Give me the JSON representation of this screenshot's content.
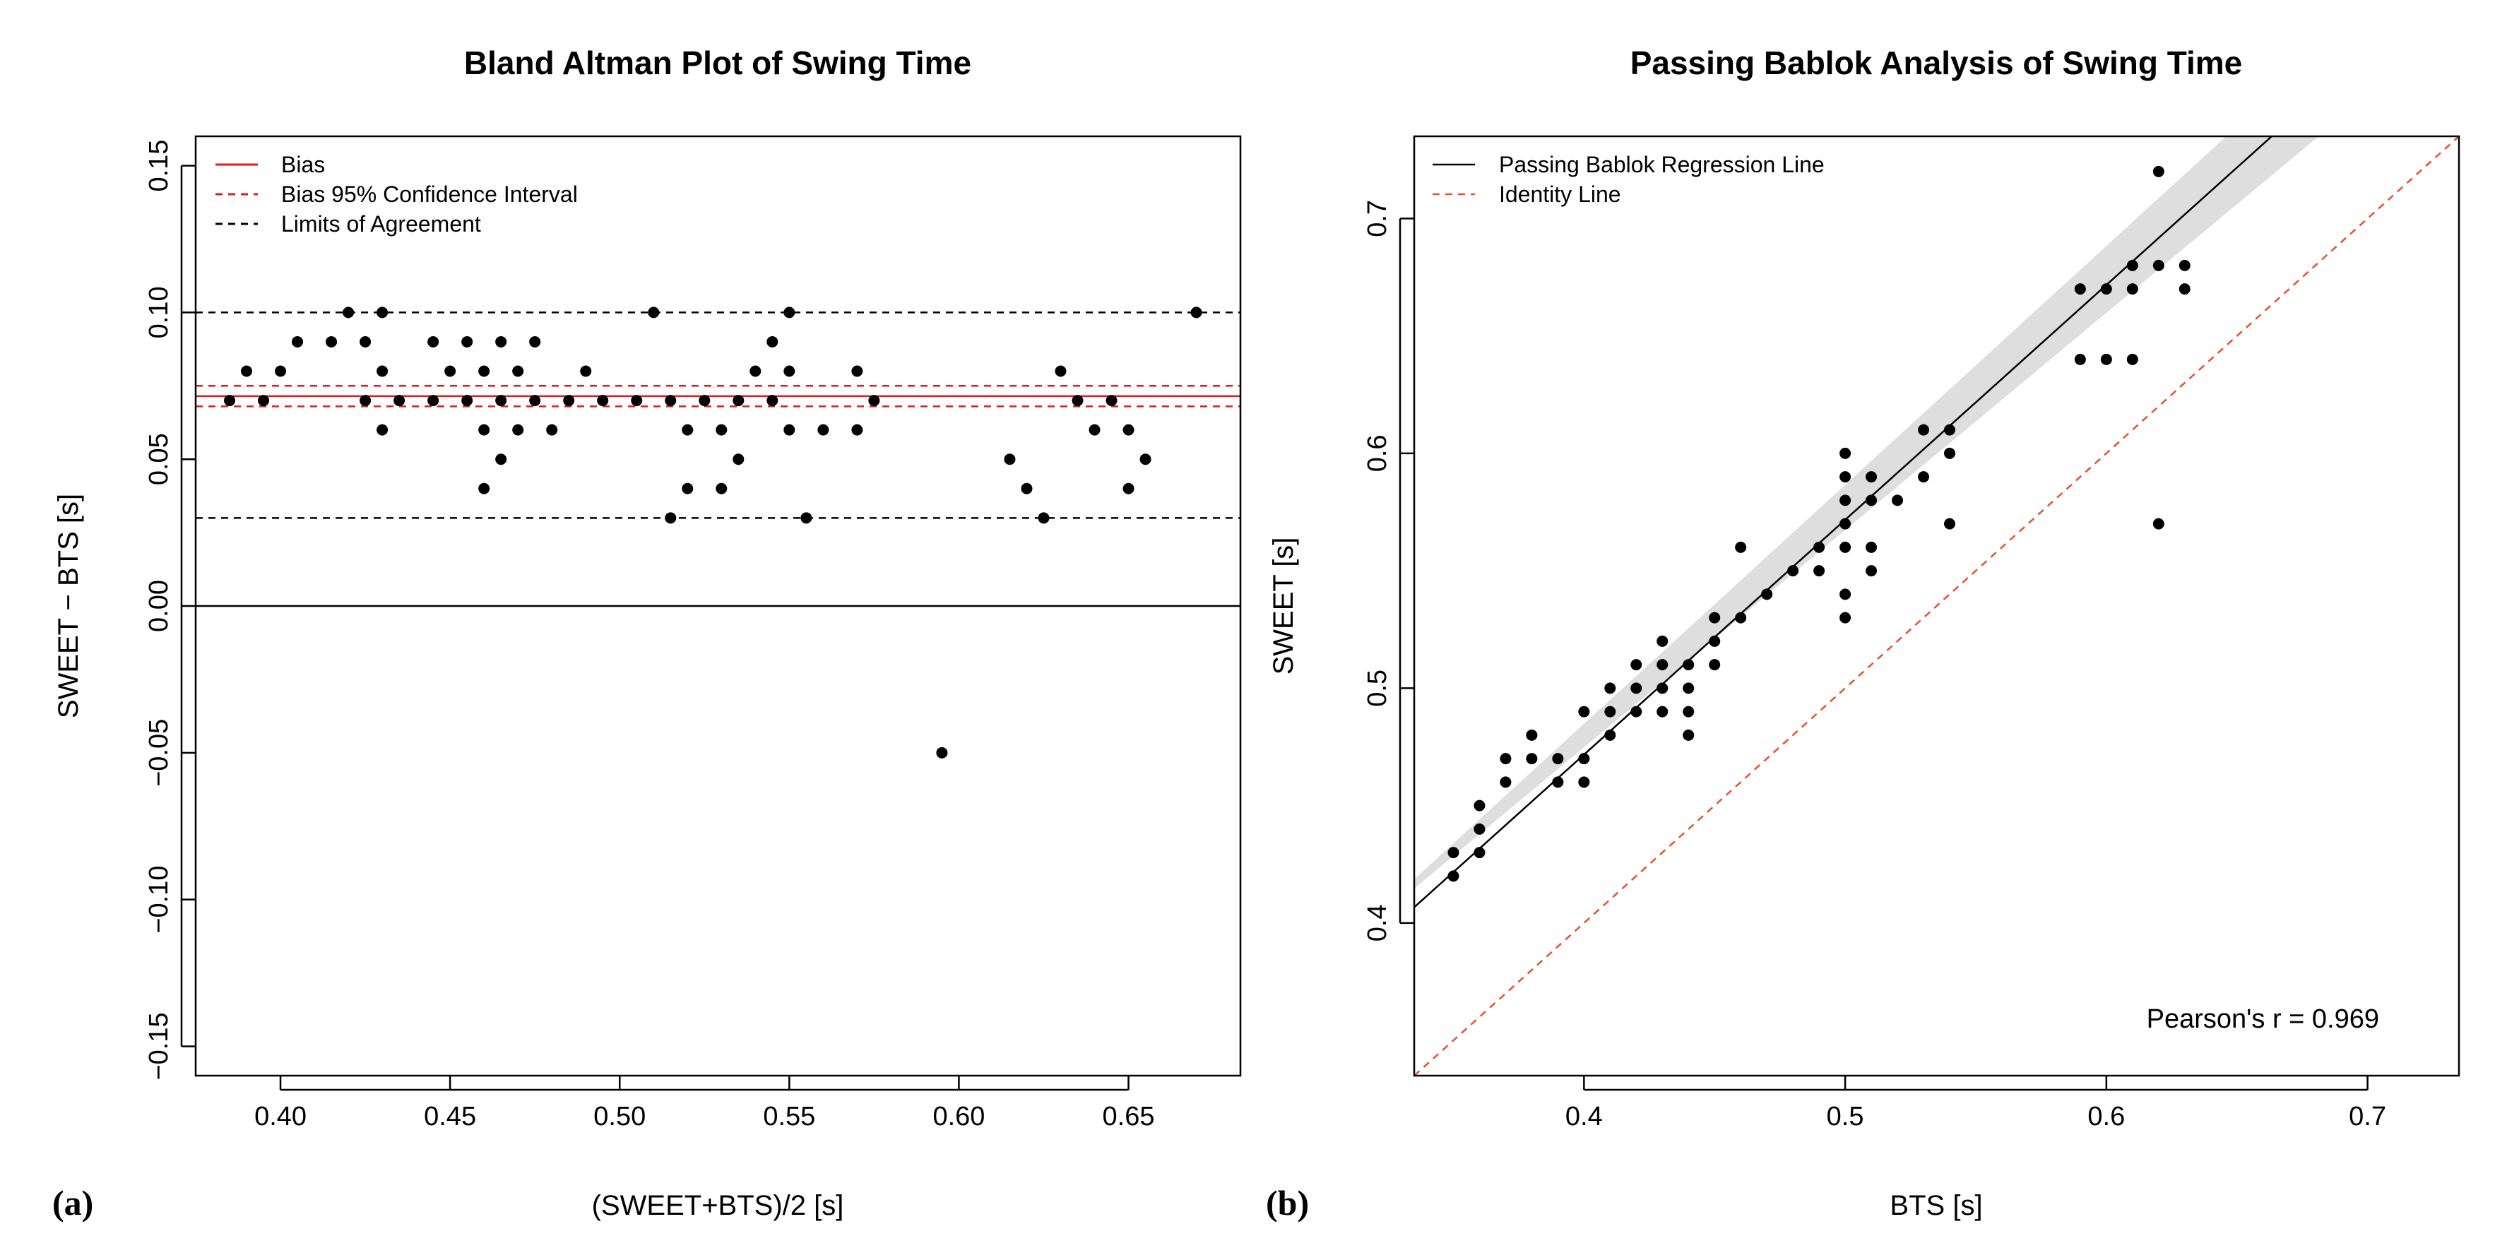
{
  "colors": {
    "bias": "#e31a1c",
    "identity": "#e8502a",
    "band": "#dedede",
    "ink": "#000000"
  },
  "panels": {
    "a": "(a)",
    "b": "(b)"
  },
  "chart_data": [
    {
      "type": "scatter",
      "title": "Bland Altman Plot of Swing Time",
      "xlabel": "(SWEET+BTS)/2 [s]",
      "ylabel": "SWEET − BTS [s]",
      "xlim": [
        0.375,
        0.683
      ],
      "ylim": [
        -0.16,
        0.16
      ],
      "xticks": [
        0.4,
        0.45,
        0.5,
        0.55,
        0.6,
        0.65
      ],
      "xtick_labels": [
        "0.40",
        "0.45",
        "0.50",
        "0.55",
        "0.60",
        "0.65"
      ],
      "yticks": [
        -0.15,
        -0.1,
        -0.05,
        0.0,
        0.05,
        0.1,
        0.15
      ],
      "ytick_labels": [
        "−0.15",
        "−0.10",
        "−0.05",
        "0.00",
        "0.05",
        "0.10",
        "0.15"
      ],
      "legend": [
        "Bias",
        "Bias 95% Confidence Interval",
        "Limits of Agreement"
      ],
      "legend_position": "top-left",
      "bias": 0.0715,
      "bias_ci": [
        0.068,
        0.075
      ],
      "limits_of_agreement": [
        0.03,
        0.1
      ],
      "zero_line": 0,
      "points": [
        [
          0.385,
          0.07
        ],
        [
          0.39,
          0.08
        ],
        [
          0.395,
          0.07
        ],
        [
          0.4,
          0.08
        ],
        [
          0.405,
          0.09
        ],
        [
          0.415,
          0.09
        ],
        [
          0.42,
          0.1
        ],
        [
          0.425,
          0.09
        ],
        [
          0.425,
          0.07
        ],
        [
          0.43,
          0.1
        ],
        [
          0.43,
          0.08
        ],
        [
          0.43,
          0.06
        ],
        [
          0.435,
          0.07
        ],
        [
          0.445,
          0.09
        ],
        [
          0.445,
          0.07
        ],
        [
          0.45,
          0.08
        ],
        [
          0.455,
          0.09
        ],
        [
          0.455,
          0.07
        ],
        [
          0.46,
          0.08
        ],
        [
          0.46,
          0.06
        ],
        [
          0.46,
          0.04
        ],
        [
          0.465,
          0.09
        ],
        [
          0.465,
          0.07
        ],
        [
          0.465,
          0.05
        ],
        [
          0.47,
          0.08
        ],
        [
          0.47,
          0.06
        ],
        [
          0.475,
          0.09
        ],
        [
          0.475,
          0.07
        ],
        [
          0.48,
          0.06
        ],
        [
          0.485,
          0.07
        ],
        [
          0.49,
          0.08
        ],
        [
          0.495,
          0.07
        ],
        [
          0.505,
          0.07
        ],
        [
          0.51,
          0.1
        ],
        [
          0.515,
          0.07
        ],
        [
          0.515,
          0.03
        ],
        [
          0.52,
          0.06
        ],
        [
          0.52,
          0.04
        ],
        [
          0.525,
          0.07
        ],
        [
          0.53,
          0.06
        ],
        [
          0.53,
          0.04
        ],
        [
          0.535,
          0.07
        ],
        [
          0.535,
          0.05
        ],
        [
          0.54,
          0.08
        ],
        [
          0.545,
          0.09
        ],
        [
          0.545,
          0.07
        ],
        [
          0.55,
          0.1
        ],
        [
          0.55,
          0.08
        ],
        [
          0.55,
          0.06
        ],
        [
          0.555,
          0.03
        ],
        [
          0.56,
          0.06
        ],
        [
          0.57,
          0.08
        ],
        [
          0.57,
          0.06
        ],
        [
          0.575,
          0.07
        ],
        [
          0.595,
          -0.05
        ],
        [
          0.615,
          0.05
        ],
        [
          0.62,
          0.04
        ],
        [
          0.625,
          0.03
        ],
        [
          0.63,
          0.08
        ],
        [
          0.635,
          0.07
        ],
        [
          0.64,
          0.06
        ],
        [
          0.645,
          0.07
        ],
        [
          0.65,
          0.06
        ],
        [
          0.65,
          0.04
        ],
        [
          0.655,
          0.05
        ],
        [
          0.67,
          0.1
        ]
      ]
    },
    {
      "type": "scatter",
      "title": "Passing Bablok Analysis of Swing Time",
      "xlabel": "BTS [s]",
      "ylabel": "SWEET [s]",
      "xlim": [
        0.335,
        0.735
      ],
      "ylim": [
        0.335,
        0.735
      ],
      "xticks": [
        0.4,
        0.5,
        0.6,
        0.7
      ],
      "xtick_labels": [
        "0.4",
        "0.5",
        "0.6",
        "0.7"
      ],
      "yticks": [
        0.4,
        0.5,
        0.6,
        0.7
      ],
      "ytick_labels": [
        "0.4",
        "0.5",
        "0.6",
        "0.7"
      ],
      "legend": [
        "Passing Bablok Regression Line",
        "Identity Line"
      ],
      "legend_position": "top-left",
      "regression": {
        "slope": 1.0,
        "intercept": 0.0717
      },
      "confidence_band": {
        "low": [
          [
            0.335,
            0.4147
          ],
          [
            0.735,
            0.7847
          ]
        ],
        "high": [
          [
            0.335,
            0.4187
          ],
          [
            0.735,
            0.8257
          ]
        ]
      },
      "identity": {
        "slope": 1,
        "intercept": 0
      },
      "annotation": "Pearson's r = 0.969",
      "points": [
        [
          0.35,
          0.43
        ],
        [
          0.35,
          0.42
        ],
        [
          0.36,
          0.45
        ],
        [
          0.36,
          0.44
        ],
        [
          0.36,
          0.43
        ],
        [
          0.37,
          0.47
        ],
        [
          0.37,
          0.46
        ],
        [
          0.38,
          0.48
        ],
        [
          0.38,
          0.47
        ],
        [
          0.39,
          0.47
        ],
        [
          0.39,
          0.46
        ],
        [
          0.4,
          0.49
        ],
        [
          0.4,
          0.47
        ],
        [
          0.4,
          0.46
        ],
        [
          0.41,
          0.5
        ],
        [
          0.41,
          0.49
        ],
        [
          0.41,
          0.48
        ],
        [
          0.42,
          0.51
        ],
        [
          0.42,
          0.5
        ],
        [
          0.42,
          0.49
        ],
        [
          0.43,
          0.52
        ],
        [
          0.43,
          0.51
        ],
        [
          0.43,
          0.5
        ],
        [
          0.43,
          0.49
        ],
        [
          0.44,
          0.51
        ],
        [
          0.44,
          0.5
        ],
        [
          0.44,
          0.49
        ],
        [
          0.44,
          0.48
        ],
        [
          0.45,
          0.53
        ],
        [
          0.45,
          0.52
        ],
        [
          0.45,
          0.51
        ],
        [
          0.46,
          0.56
        ],
        [
          0.46,
          0.53
        ],
        [
          0.47,
          0.54
        ],
        [
          0.48,
          0.55
        ],
        [
          0.49,
          0.56
        ],
        [
          0.49,
          0.55
        ],
        [
          0.5,
          0.6
        ],
        [
          0.5,
          0.59
        ],
        [
          0.5,
          0.58
        ],
        [
          0.5,
          0.57
        ],
        [
          0.5,
          0.56
        ],
        [
          0.5,
          0.54
        ],
        [
          0.5,
          0.53
        ],
        [
          0.51,
          0.59
        ],
        [
          0.51,
          0.58
        ],
        [
          0.51,
          0.56
        ],
        [
          0.51,
          0.55
        ],
        [
          0.52,
          0.58
        ],
        [
          0.53,
          0.61
        ],
        [
          0.53,
          0.59
        ],
        [
          0.54,
          0.61
        ],
        [
          0.54,
          0.6
        ],
        [
          0.54,
          0.57
        ],
        [
          0.59,
          0.67
        ],
        [
          0.59,
          0.64
        ],
        [
          0.6,
          0.67
        ],
        [
          0.6,
          0.64
        ],
        [
          0.61,
          0.68
        ],
        [
          0.61,
          0.67
        ],
        [
          0.61,
          0.64
        ],
        [
          0.62,
          0.72
        ],
        [
          0.62,
          0.68
        ],
        [
          0.62,
          0.57
        ],
        [
          0.63,
          0.68
        ],
        [
          0.63,
          0.67
        ]
      ]
    }
  ]
}
